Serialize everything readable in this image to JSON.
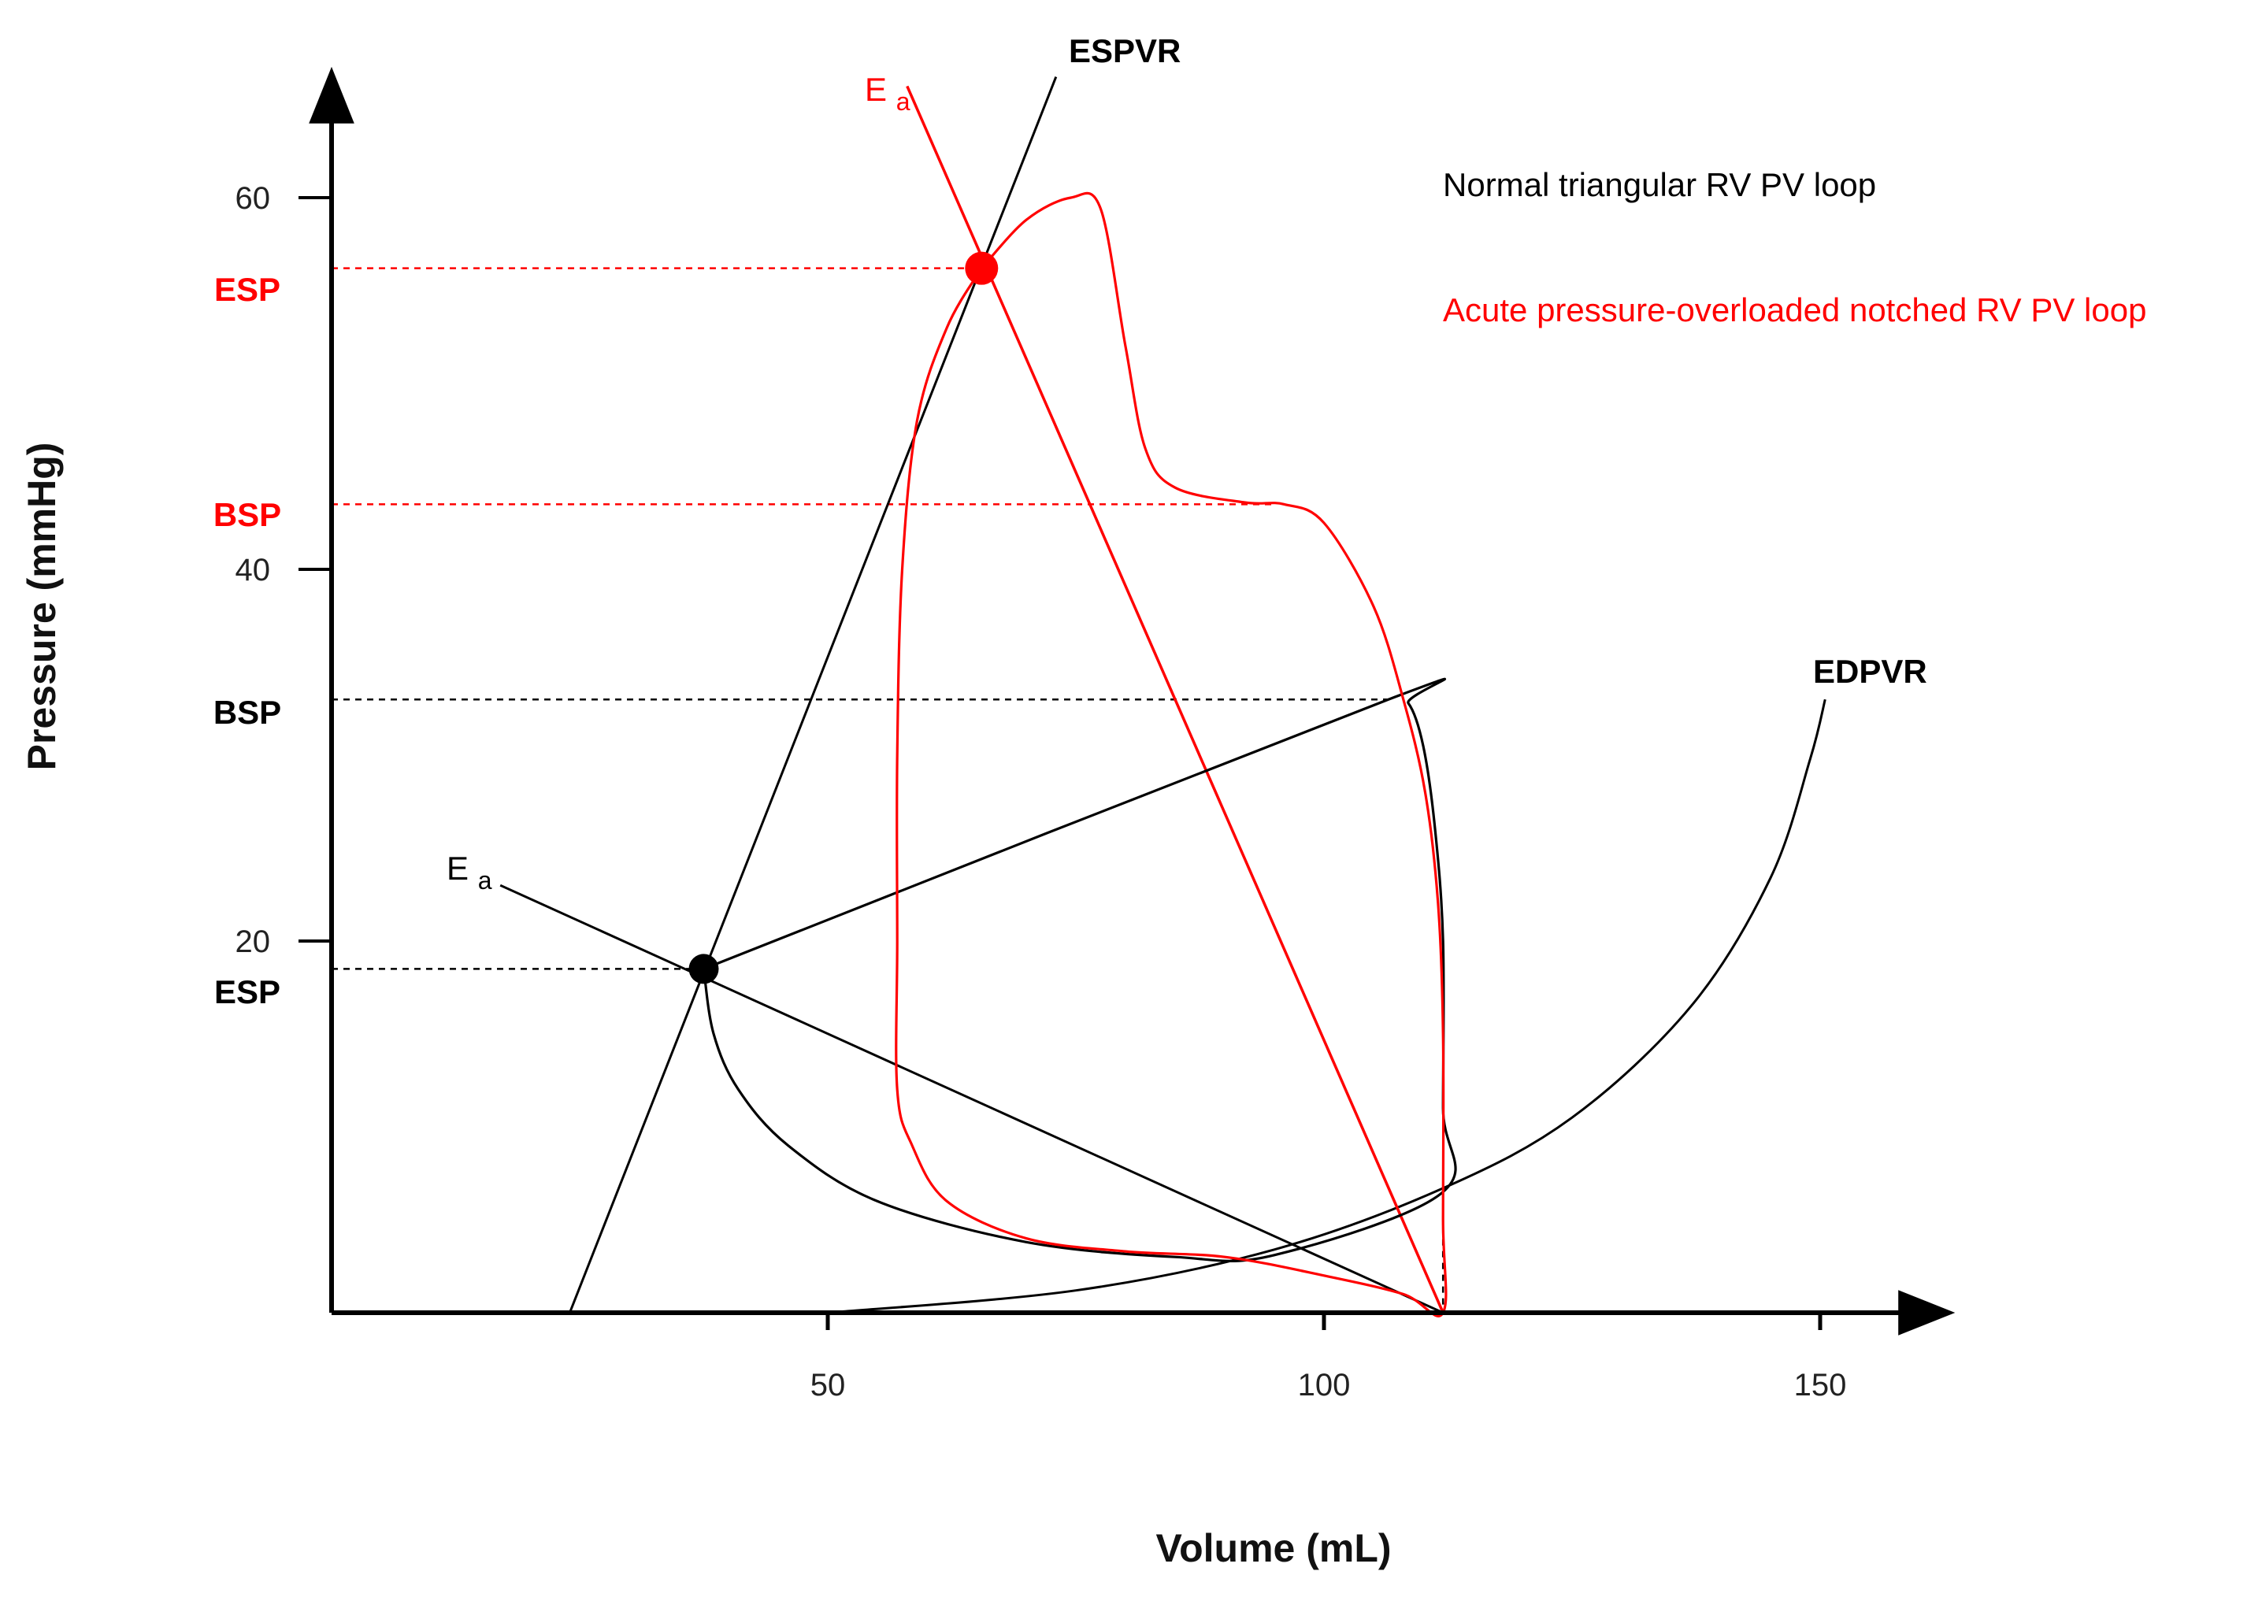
{
  "chart_data": {
    "type": "line",
    "title": "",
    "xlabel": "Volume (mL)",
    "ylabel": "Pressure (mmHg)",
    "xlim": [
      0,
      160
    ],
    "ylim": [
      0,
      66
    ],
    "x_ticks": [
      {
        "value": 50,
        "label": "50"
      },
      {
        "value": 100,
        "label": "100"
      },
      {
        "value": 150,
        "label": "150"
      }
    ],
    "y_ticks": [
      {
        "value": 20,
        "label": "20"
      },
      {
        "value": 40,
        "label": "40"
      },
      {
        "value": 60,
        "label": "60"
      }
    ],
    "grid": false,
    "colors": {
      "normal": "#000000",
      "overloaded": "#ff0000",
      "axis": "#000000",
      "tick_text": "#222222"
    },
    "legend": {
      "position": "top-right",
      "entries": [
        {
          "label": "Normal triangular RV PV loop",
          "color": "#000000"
        },
        {
          "label": "Acute pressure-overloaded notched RV PV loop",
          "color": "#ff0000"
        }
      ]
    },
    "markers": {
      "normal": {
        "esp": {
          "label": "ESP",
          "value": 18.5
        },
        "bsp": {
          "label": "BSP",
          "value": 33
        }
      },
      "overloaded": {
        "esp": {
          "label": "ESP",
          "value": 56.2
        },
        "bsp": {
          "label": "BSP",
          "value": 43.5
        }
      }
    },
    "lines": {
      "espvr": {
        "label": "ESPVR",
        "points": [
          [
            24,
            0
          ],
          [
            73,
            66.5
          ]
        ]
      },
      "edpvr": {
        "label": "EDPVR",
        "points": [
          [
            50,
            0
          ],
          [
            75,
            1.2
          ],
          [
            95,
            3.4
          ],
          [
            112,
            6.7
          ],
          [
            125,
            10.5
          ],
          [
            137,
            16.5
          ],
          [
            145,
            23.4
          ],
          [
            149,
            29.8
          ],
          [
            150.5,
            33
          ]
        ]
      },
      "ea_normal": {
        "label": "E",
        "subscript": "a",
        "points": [
          [
            17,
            23
          ],
          [
            112,
            0
          ]
        ]
      },
      "ea_overloaded": {
        "label": "E",
        "subscript": "a",
        "points": [
          [
            58,
            66
          ],
          [
            112,
            0
          ]
        ]
      }
    },
    "series": [
      {
        "name": "Normal triangular RV PV loop",
        "color": "#000000",
        "points": [
          [
            37.5,
            18.5
          ],
          [
            38.5,
            15
          ],
          [
            41,
            12
          ],
          [
            46,
            9
          ],
          [
            55,
            6
          ],
          [
            70,
            3.8
          ],
          [
            85,
            3
          ],
          [
            95,
            3.1
          ],
          [
            112,
            6.5
          ],
          [
            112,
            11
          ],
          [
            112,
            20
          ],
          [
            111.2,
            26
          ],
          [
            110,
            30.5
          ],
          [
            108.5,
            32.8
          ],
          [
            106.5,
            33
          ],
          [
            37.5,
            18.5
          ]
        ]
      },
      {
        "name": "Acute pressure-overloaded notched RV PV loop",
        "color": "#ff0000",
        "points": [
          [
            65.5,
            56.2
          ],
          [
            70,
            58.8
          ],
          [
            74.5,
            60
          ],
          [
            77.5,
            59.4
          ],
          [
            80,
            52
          ],
          [
            82,
            46.5
          ],
          [
            85,
            44.4
          ],
          [
            92,
            43.6
          ],
          [
            96,
            43.5
          ],
          [
            100,
            42.5
          ],
          [
            105,
            38
          ],
          [
            108,
            33
          ],
          [
            110.2,
            28
          ],
          [
            111.5,
            22
          ],
          [
            112,
            15
          ],
          [
            112,
            5
          ],
          [
            112,
            0
          ],
          [
            108,
            1
          ],
          [
            100,
            2
          ],
          [
            90,
            3
          ],
          [
            80,
            3.3
          ],
          [
            70,
            4
          ],
          [
            62,
            6
          ],
          [
            58.5,
            9
          ],
          [
            57,
            12
          ],
          [
            57,
            20
          ],
          [
            57,
            30
          ],
          [
            57.5,
            40
          ],
          [
            59,
            48
          ],
          [
            62,
            53
          ],
          [
            65.5,
            56.2
          ]
        ]
      }
    ]
  }
}
